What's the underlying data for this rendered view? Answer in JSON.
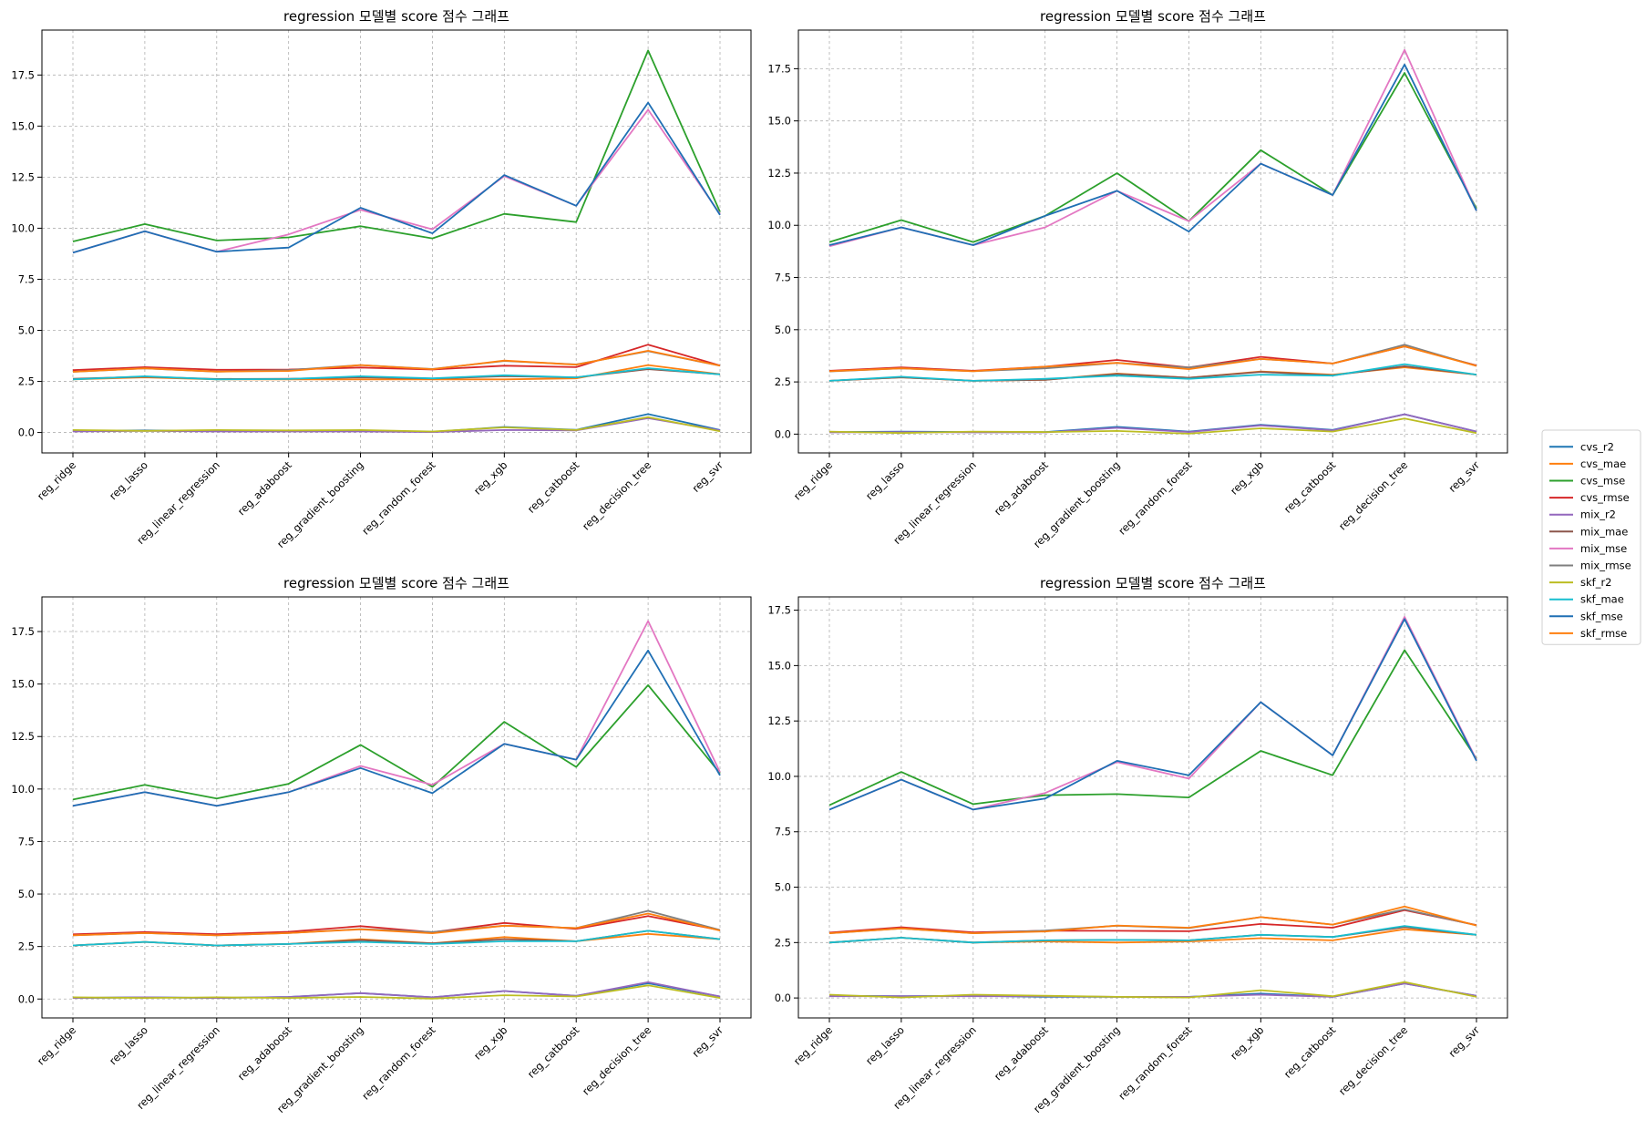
{
  "colors": {
    "cvs_r2": "#1f77b4",
    "cvs_mae": "#ff7f0e",
    "cvs_mse": "#2ca02c",
    "cvs_rmse": "#d62728",
    "mix_r2": "#9467bd",
    "mix_mae": "#8c564b",
    "mix_mse": "#e377c2",
    "mix_rmse": "#7f7f7f",
    "skf_r2": "#bcbd22",
    "skf_mae": "#17becf",
    "skf_mse": "#1f6fb4",
    "skf_rmse": "#ff7f0e"
  },
  "legend": [
    "cvs_r2",
    "cvs_mae",
    "cvs_mse",
    "cvs_rmse",
    "mix_r2",
    "mix_mae",
    "mix_mse",
    "mix_rmse",
    "skf_r2",
    "skf_mae",
    "skf_mse",
    "skf_rmse"
  ],
  "chart_data": [
    {
      "type": "line",
      "title": "regression 모델별 score 점수 그래프",
      "categories": [
        "reg_ridge",
        "reg_lasso",
        "reg_linear_regression",
        "reg_adaboost",
        "reg_gradient_boosting",
        "reg_random_forest",
        "reg_xgb",
        "reg_catboost",
        "reg_decision_tree",
        "reg_svr"
      ],
      "ylim": [
        -1.0,
        19.7
      ],
      "yticks": [
        0.0,
        2.5,
        5.0,
        7.5,
        10.0,
        12.5,
        15.0,
        17.5
      ],
      "ytick_labels": [
        "0.0",
        "2.5",
        "5.0",
        "7.5",
        "10.0",
        "12.5",
        "15.0",
        "17.5"
      ],
      "grid": true,
      "series": [
        {
          "name": "cvs_r2",
          "values": [
            0.07,
            0.1,
            0.07,
            0.07,
            0.07,
            0.03,
            0.27,
            0.13,
            0.9,
            0.12
          ]
        },
        {
          "name": "cvs_mae",
          "values": [
            2.6,
            2.7,
            2.6,
            2.6,
            2.6,
            2.6,
            2.6,
            2.65,
            3.3,
            2.85
          ]
        },
        {
          "name": "cvs_mse",
          "values": [
            9.35,
            10.2,
            9.4,
            9.55,
            10.1,
            9.5,
            10.7,
            10.3,
            18.7,
            10.8
          ]
        },
        {
          "name": "cvs_rmse",
          "values": [
            3.05,
            3.2,
            3.07,
            3.08,
            3.18,
            3.08,
            3.27,
            3.2,
            4.3,
            3.28
          ]
        },
        {
          "name": "mix_r2",
          "values": [
            0.05,
            0.08,
            0.05,
            0.05,
            0.05,
            0.02,
            0.12,
            0.1,
            0.7,
            0.1
          ]
        },
        {
          "name": "mix_mae",
          "values": [
            2.63,
            2.73,
            2.62,
            2.63,
            2.7,
            2.64,
            2.75,
            2.7,
            3.1,
            2.85
          ]
        },
        {
          "name": "mix_mse",
          "values": [
            8.8,
            9.85,
            8.85,
            9.7,
            10.9,
            9.95,
            12.55,
            11.1,
            15.8,
            10.7
          ]
        },
        {
          "name": "mix_rmse",
          "values": [
            2.97,
            3.14,
            2.98,
            3.05,
            3.3,
            3.11,
            3.5,
            3.33,
            3.98,
            3.27
          ]
        },
        {
          "name": "skf_r2",
          "values": [
            0.12,
            0.08,
            0.12,
            0.1,
            0.12,
            0.05,
            0.25,
            0.12,
            0.75,
            0.06
          ]
        },
        {
          "name": "skf_mae",
          "values": [
            2.6,
            2.75,
            2.6,
            2.62,
            2.75,
            2.65,
            2.8,
            2.7,
            3.15,
            2.84
          ]
        },
        {
          "name": "skf_mse",
          "values": [
            8.8,
            9.85,
            8.85,
            9.05,
            11.0,
            9.75,
            12.6,
            11.1,
            16.15,
            10.65
          ]
        },
        {
          "name": "skf_rmse",
          "values": [
            2.97,
            3.14,
            2.98,
            3.01,
            3.3,
            3.1,
            3.52,
            3.32,
            4.0,
            3.27
          ]
        }
      ]
    },
    {
      "type": "line",
      "title": "regression 모델별 score 점수 그래프",
      "categories": [
        "reg_ridge",
        "reg_lasso",
        "reg_linear_regression",
        "reg_adaboost",
        "reg_gradient_boosting",
        "reg_random_forest",
        "reg_xgb",
        "reg_catboost",
        "reg_decision_tree",
        "reg_svr"
      ],
      "ylim": [
        -0.9,
        19.35
      ],
      "yticks": [
        0.0,
        2.5,
        5.0,
        7.5,
        10.0,
        12.5,
        15.0,
        17.5
      ],
      "ytick_labels": [
        "0.0",
        "2.5",
        "5.0",
        "7.5",
        "10.0",
        "12.5",
        "15.0",
        "17.5"
      ],
      "grid": true,
      "series": [
        {
          "name": "cvs_r2",
          "values": [
            0.1,
            0.12,
            0.1,
            0.1,
            0.35,
            0.12,
            0.45,
            0.2,
            0.95,
            0.12
          ]
        },
        {
          "name": "cvs_mae",
          "values": [
            2.55,
            2.72,
            2.55,
            2.6,
            2.9,
            2.7,
            3.0,
            2.85,
            3.2,
            2.85
          ]
        },
        {
          "name": "cvs_mse",
          "values": [
            9.2,
            10.25,
            9.2,
            10.45,
            12.5,
            10.2,
            13.6,
            11.45,
            17.3,
            10.8
          ]
        },
        {
          "name": "cvs_rmse",
          "values": [
            3.03,
            3.2,
            3.03,
            3.23,
            3.55,
            3.19,
            3.7,
            3.38,
            4.2,
            3.29
          ]
        },
        {
          "name": "mix_r2",
          "values": [
            0.08,
            0.1,
            0.08,
            0.08,
            0.3,
            0.1,
            0.42,
            0.18,
            0.95,
            0.12
          ]
        },
        {
          "name": "mix_mae",
          "values": [
            2.55,
            2.72,
            2.55,
            2.6,
            2.88,
            2.7,
            2.98,
            2.82,
            3.25,
            2.85
          ]
        },
        {
          "name": "mix_mse",
          "values": [
            9.0,
            9.9,
            9.05,
            9.9,
            11.65,
            10.2,
            12.95,
            11.45,
            18.4,
            10.7
          ]
        },
        {
          "name": "mix_rmse",
          "values": [
            3.0,
            3.15,
            3.01,
            3.15,
            3.41,
            3.19,
            3.6,
            3.38,
            4.28,
            3.27
          ]
        },
        {
          "name": "skf_r2",
          "values": [
            0.12,
            0.05,
            0.12,
            0.1,
            0.15,
            0.02,
            0.28,
            0.12,
            0.75,
            0.05
          ]
        },
        {
          "name": "skf_mae",
          "values": [
            2.55,
            2.75,
            2.55,
            2.65,
            2.8,
            2.65,
            2.85,
            2.8,
            3.35,
            2.85
          ]
        },
        {
          "name": "skf_mse",
          "values": [
            9.05,
            9.9,
            9.05,
            10.45,
            11.65,
            9.7,
            12.95,
            11.45,
            17.7,
            10.7
          ]
        },
        {
          "name": "skf_rmse",
          "values": [
            3.01,
            3.15,
            3.01,
            3.23,
            3.41,
            3.11,
            3.6,
            3.38,
            4.2,
            3.27
          ]
        }
      ]
    },
    {
      "type": "line",
      "title": "regression 모델별 score 점수 그래프",
      "categories": [
        "reg_ridge",
        "reg_lasso",
        "reg_linear_regression",
        "reg_adaboost",
        "reg_gradient_boosting",
        "reg_random_forest",
        "reg_xgb",
        "reg_catboost",
        "reg_decision_tree",
        "reg_svr"
      ],
      "ylim": [
        -0.9,
        19.15
      ],
      "yticks": [
        0.0,
        2.5,
        5.0,
        7.5,
        10.0,
        12.5,
        15.0,
        17.5
      ],
      "ytick_labels": [
        "0.0",
        "2.5",
        "5.0",
        "7.5",
        "10.0",
        "12.5",
        "15.0",
        "17.5"
      ],
      "grid": true,
      "series": [
        {
          "name": "cvs_r2",
          "values": [
            0.05,
            0.08,
            0.05,
            0.1,
            0.28,
            0.08,
            0.38,
            0.15,
            0.75,
            0.12
          ]
        },
        {
          "name": "cvs_mae",
          "values": [
            2.55,
            2.72,
            2.55,
            2.62,
            2.85,
            2.65,
            2.95,
            2.75,
            3.1,
            2.85
          ]
        },
        {
          "name": "cvs_mse",
          "values": [
            9.5,
            10.2,
            9.55,
            10.25,
            12.1,
            10.1,
            13.2,
            11.05,
            14.95,
            10.75
          ]
        },
        {
          "name": "cvs_rmse",
          "values": [
            3.08,
            3.19,
            3.09,
            3.2,
            3.47,
            3.18,
            3.62,
            3.34,
            3.95,
            3.28
          ]
        },
        {
          "name": "mix_r2",
          "values": [
            0.05,
            0.08,
            0.05,
            0.1,
            0.28,
            0.08,
            0.38,
            0.15,
            0.8,
            0.12
          ]
        },
        {
          "name": "mix_mae",
          "values": [
            2.55,
            2.72,
            2.55,
            2.62,
            2.8,
            2.65,
            2.85,
            2.75,
            3.25,
            2.85
          ]
        },
        {
          "name": "mix_mse",
          "values": [
            9.2,
            9.85,
            9.2,
            9.85,
            11.1,
            10.2,
            12.15,
            11.4,
            18.0,
            10.8
          ]
        },
        {
          "name": "mix_rmse",
          "values": [
            3.03,
            3.14,
            3.03,
            3.14,
            3.33,
            3.19,
            3.49,
            3.38,
            4.2,
            3.29
          ]
        },
        {
          "name": "skf_r2",
          "values": [
            0.08,
            0.05,
            0.08,
            0.05,
            0.1,
            0.02,
            0.18,
            0.12,
            0.65,
            0.05
          ]
        },
        {
          "name": "skf_mae",
          "values": [
            2.55,
            2.72,
            2.55,
            2.62,
            2.72,
            2.62,
            2.75,
            2.75,
            3.25,
            2.85
          ]
        },
        {
          "name": "skf_mse",
          "values": [
            9.2,
            9.85,
            9.2,
            9.85,
            11.0,
            9.8,
            12.15,
            11.4,
            16.6,
            10.65
          ]
        },
        {
          "name": "skf_rmse",
          "values": [
            3.03,
            3.14,
            3.03,
            3.14,
            3.32,
            3.13,
            3.49,
            3.38,
            4.07,
            3.26
          ]
        }
      ]
    },
    {
      "type": "line",
      "title": "regression 모델별 score 점수 그래프",
      "categories": [
        "reg_ridge",
        "reg_lasso",
        "reg_linear_regression",
        "reg_adaboost",
        "reg_gradient_boosting",
        "reg_random_forest",
        "reg_xgb",
        "reg_catboost",
        "reg_decision_tree",
        "reg_svr"
      ],
      "ylim": [
        -0.9,
        18.1
      ],
      "yticks": [
        0.0,
        2.5,
        5.0,
        7.5,
        10.0,
        12.5,
        15.0,
        17.5
      ],
      "ytick_labels": [
        "0.0",
        "2.5",
        "5.0",
        "7.5",
        "10.0",
        "12.5",
        "15.0",
        "17.5"
      ],
      "grid": true,
      "series": [
        {
          "name": "cvs_r2",
          "values": [
            0.1,
            0.08,
            0.1,
            0.05,
            0.05,
            0.05,
            0.2,
            0.05,
            0.65,
            0.1
          ]
        },
        {
          "name": "cvs_mae",
          "values": [
            2.5,
            2.72,
            2.5,
            2.55,
            2.5,
            2.55,
            2.7,
            2.6,
            3.1,
            2.85
          ]
        },
        {
          "name": "cvs_mse",
          "values": [
            8.7,
            10.2,
            8.75,
            9.15,
            9.2,
            9.05,
            11.15,
            10.05,
            15.7,
            10.8
          ]
        },
        {
          "name": "cvs_rmse",
          "values": [
            2.95,
            3.19,
            2.96,
            3.03,
            3.03,
            3.01,
            3.34,
            3.17,
            3.96,
            3.29
          ]
        },
        {
          "name": "mix_r2",
          "values": [
            0.08,
            0.08,
            0.08,
            0.08,
            0.05,
            0.05,
            0.15,
            0.05,
            0.65,
            0.1
          ]
        },
        {
          "name": "mix_mae",
          "values": [
            2.5,
            2.72,
            2.5,
            2.6,
            2.62,
            2.6,
            2.85,
            2.75,
            3.2,
            2.85
          ]
        },
        {
          "name": "mix_mse",
          "values": [
            8.5,
            9.85,
            8.5,
            9.25,
            10.65,
            9.9,
            13.35,
            10.95,
            17.2,
            10.75
          ]
        },
        {
          "name": "mix_rmse",
          "values": [
            2.92,
            3.14,
            2.92,
            3.04,
            3.26,
            3.15,
            3.65,
            3.31,
            4.0,
            3.28
          ]
        },
        {
          "name": "skf_r2",
          "values": [
            0.15,
            0.02,
            0.15,
            0.1,
            0.05,
            0.02,
            0.35,
            0.08,
            0.72,
            0.05
          ]
        },
        {
          "name": "skf_mae",
          "values": [
            2.5,
            2.72,
            2.5,
            2.6,
            2.62,
            2.6,
            2.85,
            2.75,
            3.25,
            2.85
          ]
        },
        {
          "name": "skf_mse",
          "values": [
            8.5,
            9.85,
            8.5,
            9.0,
            10.7,
            10.05,
            13.35,
            10.95,
            17.1,
            10.7
          ]
        },
        {
          "name": "skf_rmse",
          "values": [
            2.92,
            3.14,
            2.92,
            3.0,
            3.27,
            3.17,
            3.65,
            3.31,
            4.13,
            3.27
          ]
        }
      ]
    }
  ]
}
